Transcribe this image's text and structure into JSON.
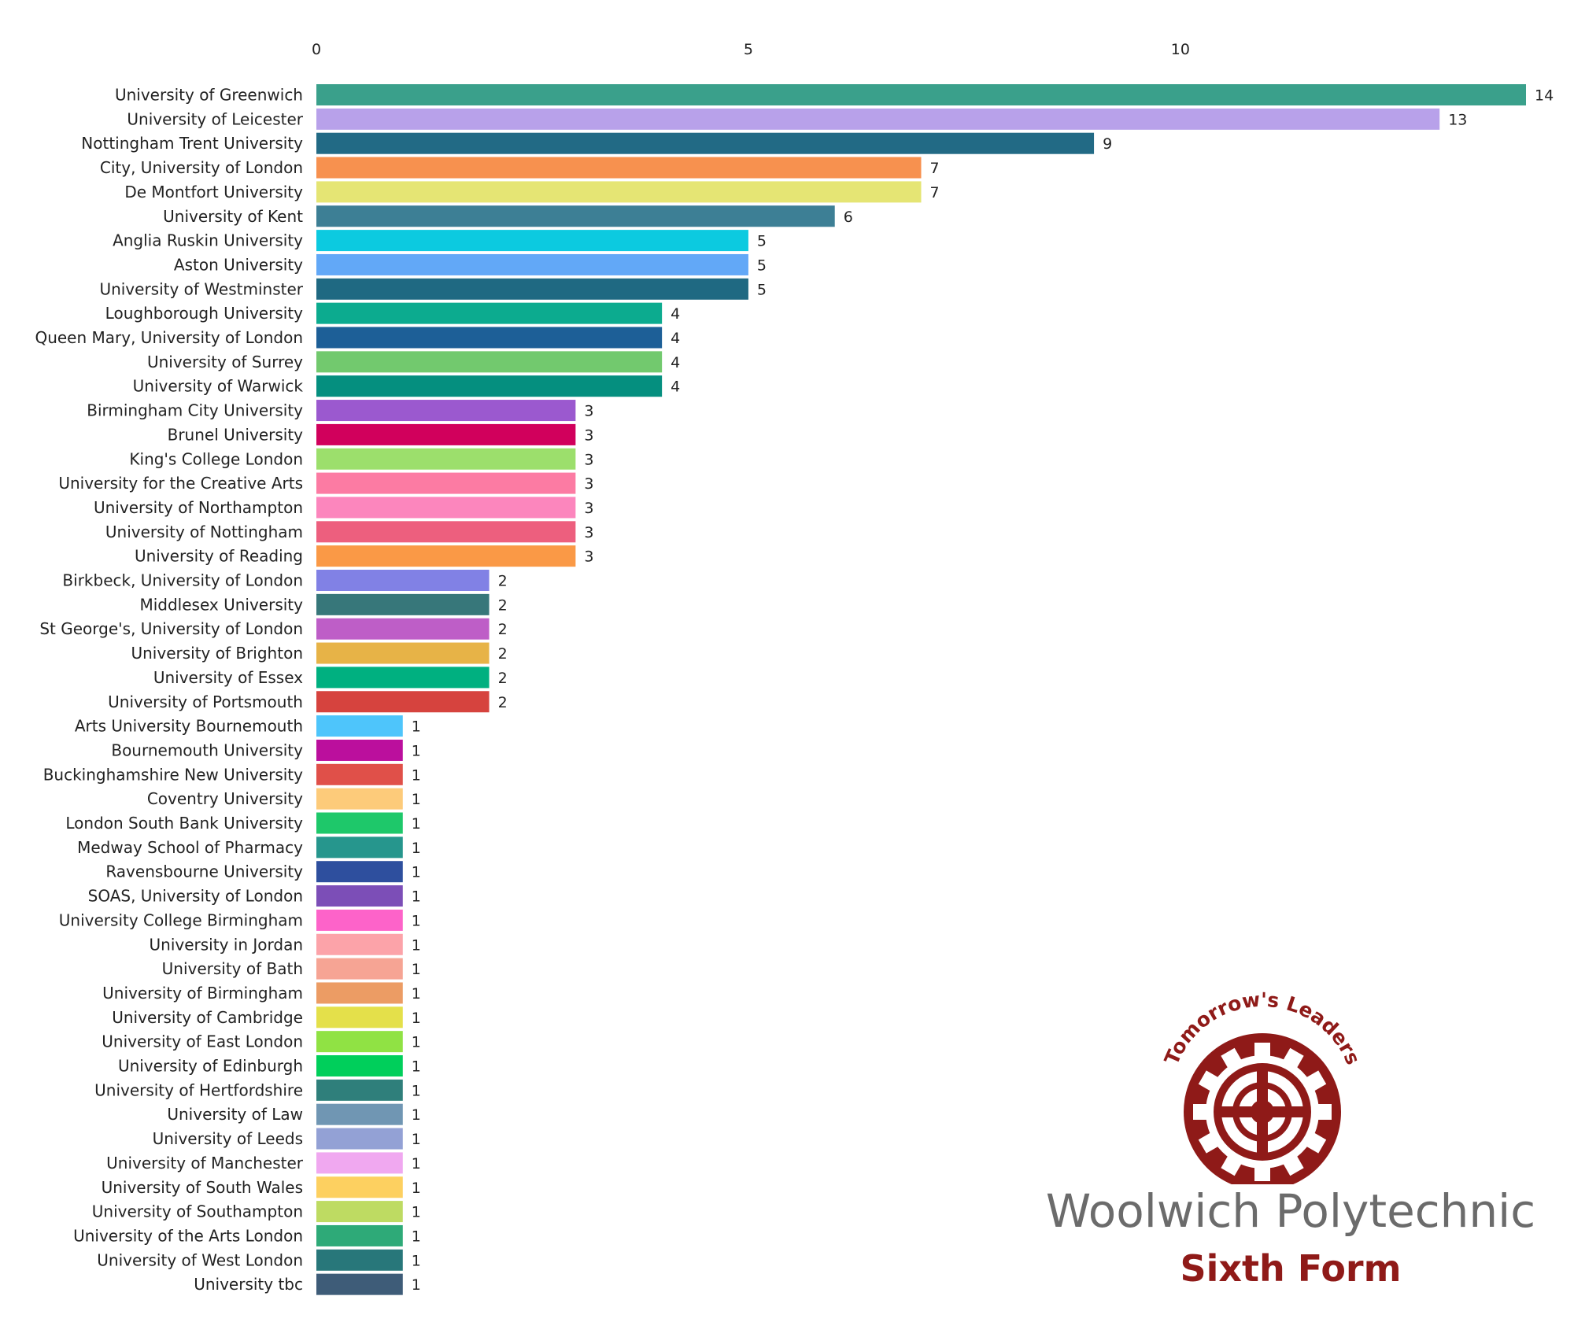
{
  "chart_data": {
    "type": "bar",
    "orientation": "horizontal",
    "title": "",
    "xlabel": "",
    "ylabel": "",
    "xlim": [
      0,
      14
    ],
    "x_ticks": [
      0,
      5,
      10
    ],
    "grid": false,
    "legend": "none",
    "data_labels": true,
    "categories": [
      "University of Greenwich",
      "University of Leicester",
      "Nottingham Trent University",
      "City, University of London",
      "De Montfort University",
      "University of Kent",
      "Anglia Ruskin University",
      "Aston University",
      "University of Westminster",
      "Loughborough University",
      "Queen Mary, University of London",
      "University of Surrey",
      "University of Warwick",
      "Birmingham City University",
      "Brunel University",
      "King's College London",
      "University for the Creative Arts",
      "University of Northampton",
      "University of Nottingham",
      "University of Reading",
      "Birkbeck, University of London",
      "Middlesex University",
      "St George's, University of London",
      "University of Brighton",
      "University of Essex",
      "University of Portsmouth",
      "Arts University Bournemouth",
      "Bournemouth University",
      "Buckinghamshire New University",
      "Coventry University",
      "London South Bank University",
      "Medway School of Pharmacy",
      "Ravensbourne University",
      "SOAS, University of London",
      "University College Birmingham",
      "University in Jordan",
      "University of Bath",
      "University of Birmingham",
      "University of Cambridge",
      "University of East London",
      "University of Edinburgh",
      "University of Hertfordshire",
      "University of Law",
      "University of Leeds",
      "University of Manchester",
      "University of South Wales",
      "University of Southampton",
      "University of the Arts London",
      "University of West London",
      "University tbc"
    ],
    "values": [
      14,
      13,
      9,
      7,
      7,
      6,
      5,
      5,
      5,
      4,
      4,
      4,
      4,
      3,
      3,
      3,
      3,
      3,
      3,
      3,
      2,
      2,
      2,
      2,
      2,
      2,
      1,
      1,
      1,
      1,
      1,
      1,
      1,
      1,
      1,
      1,
      1,
      1,
      1,
      1,
      1,
      1,
      1,
      1,
      1,
      1,
      1,
      1,
      1,
      1
    ],
    "colors": [
      "#3aa08b",
      "#b8a1ea",
      "#226a85",
      "#f7914f",
      "#e5e574",
      "#3d7f95",
      "#0ccae0",
      "#62a8f7",
      "#1f6982",
      "#0cab8f",
      "#1d5f97",
      "#72c96e",
      "#058f7f",
      "#9b59cf",
      "#d1005c",
      "#9cdf6c",
      "#fc7ba3",
      "#fc86bd",
      "#ed5f7e",
      "#fa9946",
      "#8181e5",
      "#37777a",
      "#be5ec7",
      "#e7b347",
      "#00b080",
      "#d6433e",
      "#4ec5fb",
      "#bb0f9d",
      "#e05049",
      "#fdcb7a",
      "#1ec86a",
      "#26968d",
      "#2e4f9e",
      "#7c4eb7",
      "#fd63c9",
      "#fca3a9",
      "#f6a494",
      "#ec9c64",
      "#e4e04a",
      "#90e244",
      "#00cf5b",
      "#2f7f7b",
      "#7096b3",
      "#93a1d5",
      "#f0a8f0",
      "#fdd060",
      "#bedb62",
      "#2eaa78",
      "#28777a",
      "#3e5c78"
    ]
  },
  "logo": {
    "arc_text": "Tomorrow's Leaders",
    "org": "Woolwich Polytechnic",
    "sub": "Sixth Form"
  }
}
